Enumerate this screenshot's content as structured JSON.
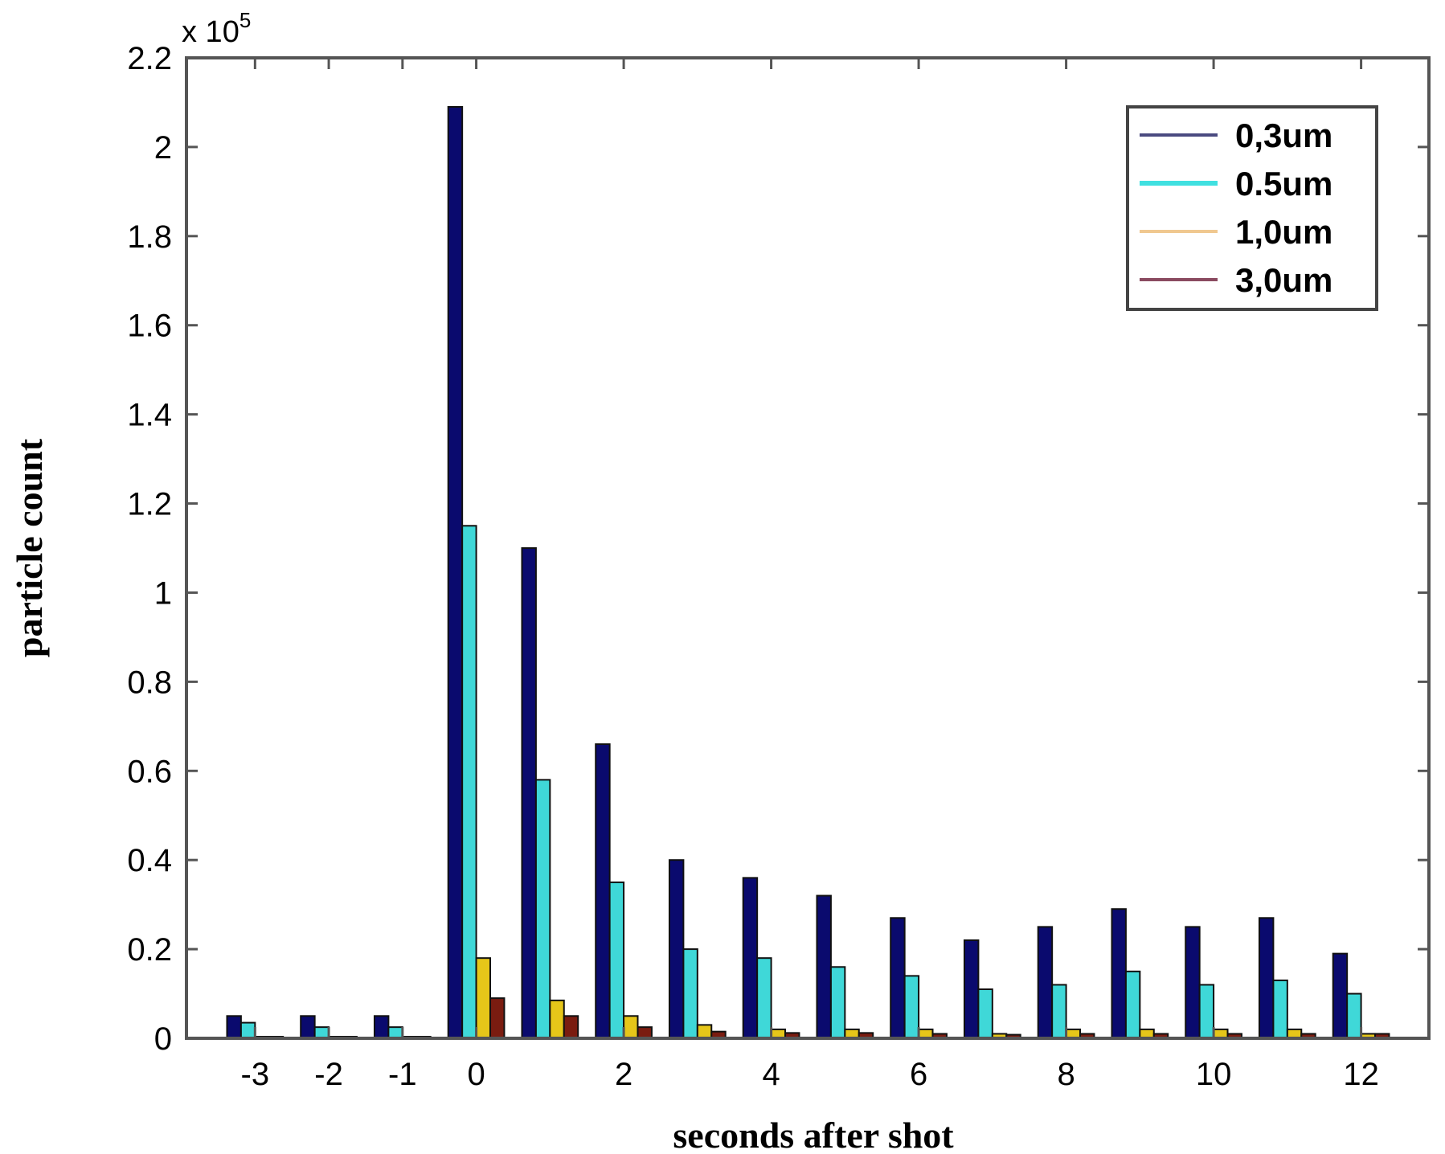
{
  "chart_data": {
    "type": "bar",
    "title": "",
    "xlabel": "seconds after shot",
    "ylabel": "particle count",
    "y_multiplier_label": "x 10",
    "y_multiplier_exponent": "5",
    "ylim": [
      0,
      2.2
    ],
    "xlim": [
      -3.93,
      12.92
    ],
    "yticks": [
      0,
      0.2,
      0.4,
      0.6,
      0.8,
      1,
      1.2,
      1.4,
      1.6,
      1.8,
      2,
      2.2
    ],
    "ytick_labels": [
      "0",
      "0.2",
      "0.4",
      "0.6",
      "0.8",
      "1",
      "1.2",
      "1.4",
      "1.6",
      "1.8",
      "2",
      "2.2"
    ],
    "xticks": [
      -3,
      -2,
      -1,
      0,
      2,
      4,
      6,
      8,
      10,
      12
    ],
    "xtick_labels": [
      "-3",
      "-2",
      "-1",
      "0",
      "2",
      "4",
      "6",
      "8",
      "10",
      "12"
    ],
    "grid": false,
    "legend_position": "upper right",
    "categories": [
      -3,
      -2,
      -1,
      0,
      1,
      2,
      3,
      4,
      5,
      6,
      7,
      8,
      9,
      10,
      11,
      12
    ],
    "series": [
      {
        "name": "0,3um",
        "color": "#0a0a6e",
        "values": [
          0.05,
          0.05,
          0.05,
          2.09,
          1.1,
          0.66,
          0.4,
          0.36,
          0.32,
          0.27,
          0.22,
          0.25,
          0.29,
          0.25,
          0.27,
          0.19
        ]
      },
      {
        "name": "0.5um",
        "color": "#3fd8d8",
        "values": [
          0.035,
          0.025,
          0.025,
          1.15,
          0.58,
          0.35,
          0.2,
          0.18,
          0.16,
          0.14,
          0.11,
          0.12,
          0.15,
          0.12,
          0.13,
          0.1
        ]
      },
      {
        "name": "1,0um",
        "color": "#e6c619",
        "values": [
          0.003,
          0.003,
          0.003,
          0.18,
          0.085,
          0.05,
          0.03,
          0.02,
          0.02,
          0.02,
          0.01,
          0.02,
          0.02,
          0.02,
          0.02,
          0.01
        ]
      },
      {
        "name": "3,0um",
        "color": "#7a1c10",
        "values": [
          0.002,
          0.002,
          0.002,
          0.09,
          0.05,
          0.025,
          0.015,
          0.012,
          0.012,
          0.01,
          0.008,
          0.01,
          0.01,
          0.01,
          0.01,
          0.01
        ]
      }
    ],
    "legend_line_colors": [
      "#4a4a80",
      "#40e0e0",
      "#f0c890",
      "#8a4a60"
    ]
  }
}
